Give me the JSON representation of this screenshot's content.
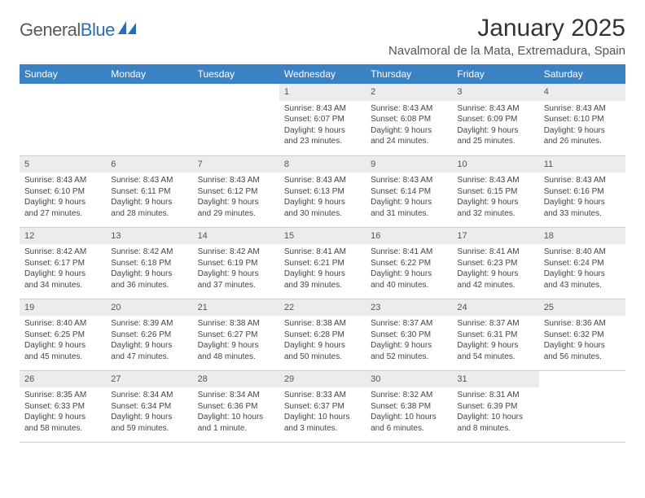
{
  "logo": {
    "text1": "General",
    "text2": "Blue"
  },
  "title": "January 2025",
  "location": "Navalmoral de la Mata, Extremadura, Spain",
  "colors": {
    "header_bg": "#3b82c4",
    "header_text": "#ffffff",
    "daynum_bg": "#ececec",
    "border": "#cccccc",
    "logo_blue": "#2a6db5",
    "body_text": "#444444"
  },
  "day_headers": [
    "Sunday",
    "Monday",
    "Tuesday",
    "Wednesday",
    "Thursday",
    "Friday",
    "Saturday"
  ],
  "weeks": [
    [
      {
        "n": "",
        "sr": "",
        "ss": "",
        "dl": ""
      },
      {
        "n": "",
        "sr": "",
        "ss": "",
        "dl": ""
      },
      {
        "n": "",
        "sr": "",
        "ss": "",
        "dl": ""
      },
      {
        "n": "1",
        "sr": "Sunrise: 8:43 AM",
        "ss": "Sunset: 6:07 PM",
        "dl": "Daylight: 9 hours and 23 minutes."
      },
      {
        "n": "2",
        "sr": "Sunrise: 8:43 AM",
        "ss": "Sunset: 6:08 PM",
        "dl": "Daylight: 9 hours and 24 minutes."
      },
      {
        "n": "3",
        "sr": "Sunrise: 8:43 AM",
        "ss": "Sunset: 6:09 PM",
        "dl": "Daylight: 9 hours and 25 minutes."
      },
      {
        "n": "4",
        "sr": "Sunrise: 8:43 AM",
        "ss": "Sunset: 6:10 PM",
        "dl": "Daylight: 9 hours and 26 minutes."
      }
    ],
    [
      {
        "n": "5",
        "sr": "Sunrise: 8:43 AM",
        "ss": "Sunset: 6:10 PM",
        "dl": "Daylight: 9 hours and 27 minutes."
      },
      {
        "n": "6",
        "sr": "Sunrise: 8:43 AM",
        "ss": "Sunset: 6:11 PM",
        "dl": "Daylight: 9 hours and 28 minutes."
      },
      {
        "n": "7",
        "sr": "Sunrise: 8:43 AM",
        "ss": "Sunset: 6:12 PM",
        "dl": "Daylight: 9 hours and 29 minutes."
      },
      {
        "n": "8",
        "sr": "Sunrise: 8:43 AM",
        "ss": "Sunset: 6:13 PM",
        "dl": "Daylight: 9 hours and 30 minutes."
      },
      {
        "n": "9",
        "sr": "Sunrise: 8:43 AM",
        "ss": "Sunset: 6:14 PM",
        "dl": "Daylight: 9 hours and 31 minutes."
      },
      {
        "n": "10",
        "sr": "Sunrise: 8:43 AM",
        "ss": "Sunset: 6:15 PM",
        "dl": "Daylight: 9 hours and 32 minutes."
      },
      {
        "n": "11",
        "sr": "Sunrise: 8:43 AM",
        "ss": "Sunset: 6:16 PM",
        "dl": "Daylight: 9 hours and 33 minutes."
      }
    ],
    [
      {
        "n": "12",
        "sr": "Sunrise: 8:42 AM",
        "ss": "Sunset: 6:17 PM",
        "dl": "Daylight: 9 hours and 34 minutes."
      },
      {
        "n": "13",
        "sr": "Sunrise: 8:42 AM",
        "ss": "Sunset: 6:18 PM",
        "dl": "Daylight: 9 hours and 36 minutes."
      },
      {
        "n": "14",
        "sr": "Sunrise: 8:42 AM",
        "ss": "Sunset: 6:19 PM",
        "dl": "Daylight: 9 hours and 37 minutes."
      },
      {
        "n": "15",
        "sr": "Sunrise: 8:41 AM",
        "ss": "Sunset: 6:21 PM",
        "dl": "Daylight: 9 hours and 39 minutes."
      },
      {
        "n": "16",
        "sr": "Sunrise: 8:41 AM",
        "ss": "Sunset: 6:22 PM",
        "dl": "Daylight: 9 hours and 40 minutes."
      },
      {
        "n": "17",
        "sr": "Sunrise: 8:41 AM",
        "ss": "Sunset: 6:23 PM",
        "dl": "Daylight: 9 hours and 42 minutes."
      },
      {
        "n": "18",
        "sr": "Sunrise: 8:40 AM",
        "ss": "Sunset: 6:24 PM",
        "dl": "Daylight: 9 hours and 43 minutes."
      }
    ],
    [
      {
        "n": "19",
        "sr": "Sunrise: 8:40 AM",
        "ss": "Sunset: 6:25 PM",
        "dl": "Daylight: 9 hours and 45 minutes."
      },
      {
        "n": "20",
        "sr": "Sunrise: 8:39 AM",
        "ss": "Sunset: 6:26 PM",
        "dl": "Daylight: 9 hours and 47 minutes."
      },
      {
        "n": "21",
        "sr": "Sunrise: 8:38 AM",
        "ss": "Sunset: 6:27 PM",
        "dl": "Daylight: 9 hours and 48 minutes."
      },
      {
        "n": "22",
        "sr": "Sunrise: 8:38 AM",
        "ss": "Sunset: 6:28 PM",
        "dl": "Daylight: 9 hours and 50 minutes."
      },
      {
        "n": "23",
        "sr": "Sunrise: 8:37 AM",
        "ss": "Sunset: 6:30 PM",
        "dl": "Daylight: 9 hours and 52 minutes."
      },
      {
        "n": "24",
        "sr": "Sunrise: 8:37 AM",
        "ss": "Sunset: 6:31 PM",
        "dl": "Daylight: 9 hours and 54 minutes."
      },
      {
        "n": "25",
        "sr": "Sunrise: 8:36 AM",
        "ss": "Sunset: 6:32 PM",
        "dl": "Daylight: 9 hours and 56 minutes."
      }
    ],
    [
      {
        "n": "26",
        "sr": "Sunrise: 8:35 AM",
        "ss": "Sunset: 6:33 PM",
        "dl": "Daylight: 9 hours and 58 minutes."
      },
      {
        "n": "27",
        "sr": "Sunrise: 8:34 AM",
        "ss": "Sunset: 6:34 PM",
        "dl": "Daylight: 9 hours and 59 minutes."
      },
      {
        "n": "28",
        "sr": "Sunrise: 8:34 AM",
        "ss": "Sunset: 6:36 PM",
        "dl": "Daylight: 10 hours and 1 minute."
      },
      {
        "n": "29",
        "sr": "Sunrise: 8:33 AM",
        "ss": "Sunset: 6:37 PM",
        "dl": "Daylight: 10 hours and 3 minutes."
      },
      {
        "n": "30",
        "sr": "Sunrise: 8:32 AM",
        "ss": "Sunset: 6:38 PM",
        "dl": "Daylight: 10 hours and 6 minutes."
      },
      {
        "n": "31",
        "sr": "Sunrise: 8:31 AM",
        "ss": "Sunset: 6:39 PM",
        "dl": "Daylight: 10 hours and 8 minutes."
      },
      {
        "n": "",
        "sr": "",
        "ss": "",
        "dl": ""
      }
    ]
  ]
}
